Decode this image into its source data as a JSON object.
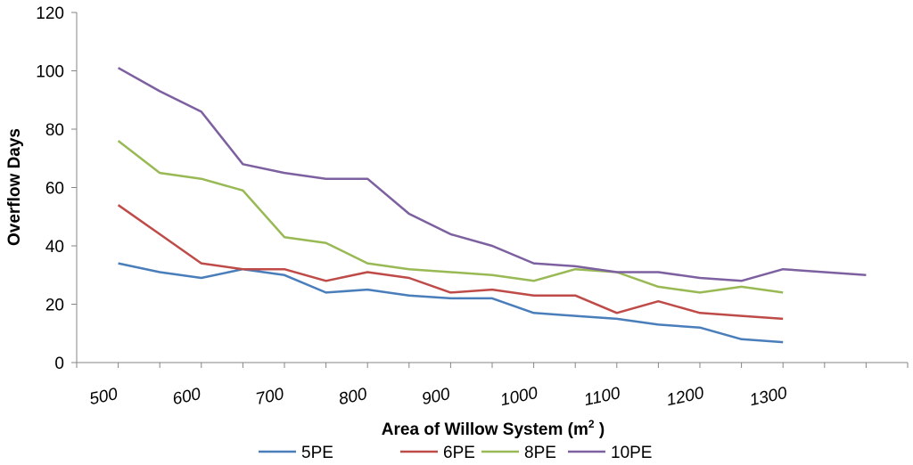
{
  "chart_data": {
    "type": "line",
    "xlabel": "Area of Willow System (m",
    "xlabel_sup": "2",
    "xlabel_close": " )",
    "ylabel": "Overflow Days",
    "ylim": [
      0,
      120
    ],
    "yticks": [
      "0",
      "20",
      "40",
      "60",
      "80",
      "100",
      "120"
    ],
    "xticks": [
      "500",
      "600",
      "700",
      "800",
      "900",
      "1000",
      "1100",
      "1200",
      "1300"
    ],
    "x": [
      525,
      575,
      625,
      675,
      725,
      775,
      825,
      875,
      925,
      975,
      1025,
      1075,
      1125,
      1175,
      1225,
      1275,
      1325,
      1375,
      1425
    ],
    "grid": false,
    "legend_position": "bottom",
    "series": [
      {
        "name": "5PE",
        "color": "#4a7ebb",
        "values": [
          34,
          31,
          29,
          32,
          30,
          24,
          25,
          23,
          22,
          22,
          17,
          16,
          15,
          13,
          12,
          8,
          7,
          null,
          null
        ]
      },
      {
        "name": "6PE",
        "color": "#be4b48",
        "values": [
          54,
          44,
          34,
          32,
          32,
          28,
          31,
          29,
          24,
          25,
          23,
          23,
          17,
          21,
          17,
          16,
          15,
          null,
          null
        ]
      },
      {
        "name": "8PE",
        "color": "#98b954",
        "values": [
          76,
          65,
          63,
          59,
          43,
          41,
          34,
          32,
          31,
          30,
          28,
          32,
          31,
          26,
          24,
          26,
          24,
          null,
          null
        ]
      },
      {
        "name": "10PE",
        "color": "#7d60a0",
        "values": [
          101,
          93,
          86,
          68,
          65,
          63,
          63,
          51,
          44,
          40,
          34,
          33,
          31,
          31,
          29,
          28,
          32,
          31,
          30
        ]
      }
    ]
  }
}
